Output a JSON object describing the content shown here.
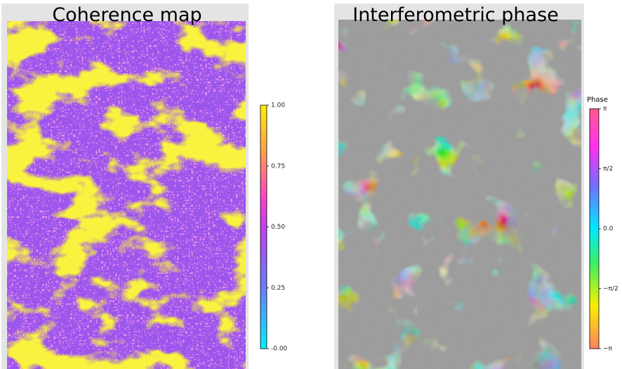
{
  "panels": [
    {
      "title": "Coherence map",
      "clim": [
        0,
        1
      ],
      "ticks": [
        {
          "value": 1,
          "label": "1.00"
        },
        {
          "value": 0.75,
          "label": "0.75"
        },
        {
          "value": 0.5,
          "label": "0.50"
        },
        {
          "value": 0.25,
          "label": "0.25"
        },
        {
          "value": 0,
          "label": "-0.00"
        }
      ]
    },
    {
      "title": "Interferometric phase",
      "colorbar_label": "Phase",
      "clim": [
        -3.1416,
        3.1416
      ],
      "ticks": [
        {
          "value": 3.1416,
          "label": "π"
        },
        {
          "value": 1.5708,
          "label": "π/2"
        },
        {
          "value": 0,
          "label": "0.0"
        },
        {
          "value": -1.5708,
          "label": "−π/2"
        },
        {
          "value": -3.1416,
          "label": "−π"
        }
      ]
    }
  ]
}
